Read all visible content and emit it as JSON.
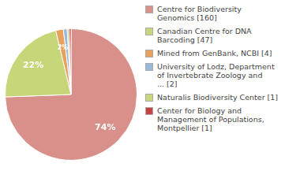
{
  "chart_data": {
    "type": "pie",
    "categories": [
      "Centre for Biodiversity\nGenomics [160]",
      "Canadian Centre for DNA\nBarcoding [47]",
      "Mined from GenBank, NCBI [4]",
      "University of Lodz, Department\nof Invertebrate Zoology and\n... [2]",
      "Naturalis Biodiversity Center [1]",
      "Center for Biology and\nManagement of Populations,\nMontpellier [1]"
    ],
    "values": [
      74.42,
      21.86,
      1.86,
      0.93,
      0.47,
      0.47
    ],
    "value_labels": [
      "74%",
      "22%",
      "2%",
      null,
      null,
      null
    ],
    "colors": [
      "#d9908a",
      "#c8d67a",
      "#e8a05a",
      "#9ab8d8",
      "#c8d87a",
      "#c84040"
    ],
    "data_labels": true,
    "legend": "right"
  }
}
